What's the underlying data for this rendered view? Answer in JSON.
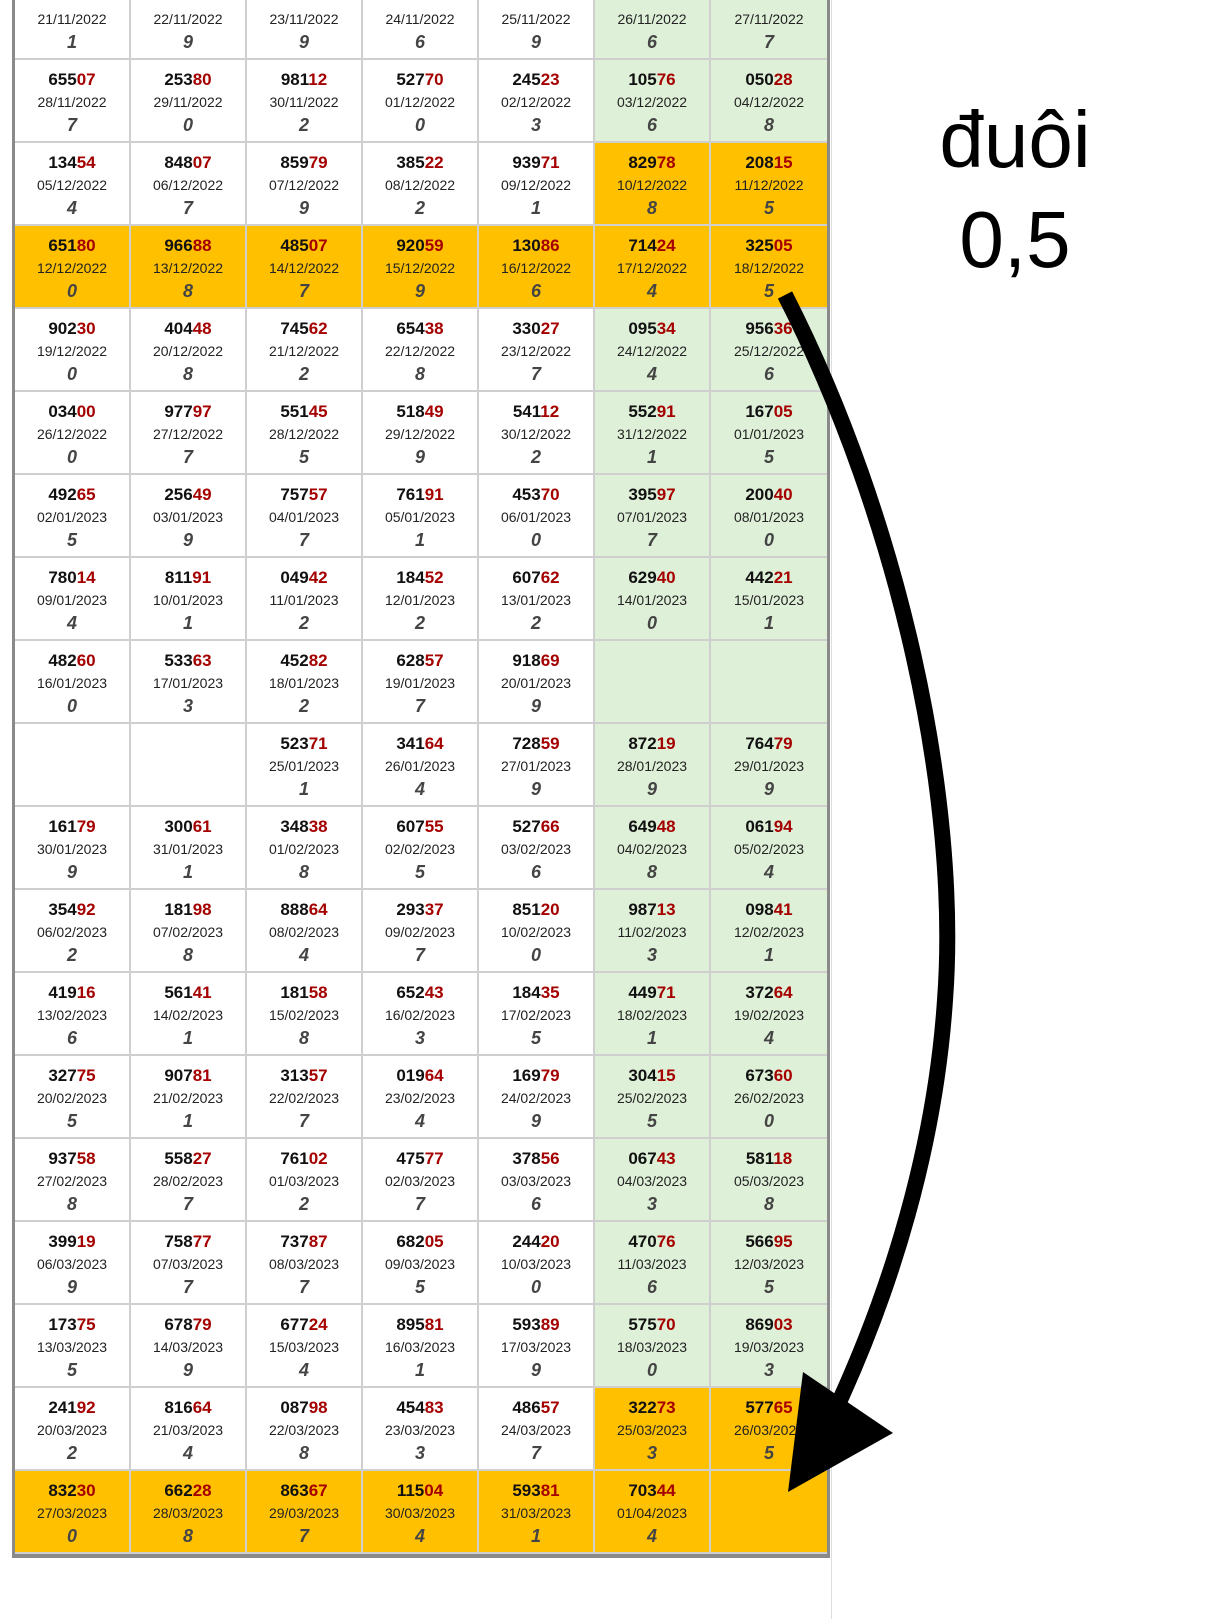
{
  "annotation": {
    "line1": "đuôi",
    "line2": "0,5"
  },
  "colors": {
    "weekend": "#dff0d8",
    "highlight": "#ffc000",
    "tail": "#a50000"
  },
  "rows": [
    {
      "hl": "none",
      "cells": [
        [
          "",
          "21/11/2022",
          "1"
        ],
        [
          "",
          "22/11/2022",
          "9"
        ],
        [
          "",
          "23/11/2022",
          "9"
        ],
        [
          "",
          "24/11/2022",
          "6"
        ],
        [
          "",
          "25/11/2022",
          "9"
        ],
        [
          "",
          "26/11/2022",
          "6"
        ],
        [
          "",
          "27/11/2022",
          "7"
        ]
      ]
    },
    {
      "hl": "none",
      "cells": [
        [
          "65507",
          "28/11/2022",
          "7"
        ],
        [
          "25380",
          "29/11/2022",
          "0"
        ],
        [
          "98112",
          "30/11/2022",
          "2"
        ],
        [
          "52770",
          "01/12/2022",
          "0"
        ],
        [
          "24523",
          "02/12/2022",
          "3"
        ],
        [
          "10576",
          "03/12/2022",
          "6"
        ],
        [
          "05028",
          "04/12/2022",
          "8"
        ]
      ]
    },
    {
      "hl": "weekend",
      "cells": [
        [
          "13454",
          "05/12/2022",
          "4"
        ],
        [
          "84807",
          "06/12/2022",
          "7"
        ],
        [
          "85979",
          "07/12/2022",
          "9"
        ],
        [
          "38522",
          "08/12/2022",
          "2"
        ],
        [
          "93971",
          "09/12/2022",
          "1"
        ],
        [
          "82978",
          "10/12/2022",
          "8"
        ],
        [
          "20815",
          "11/12/2022",
          "5"
        ]
      ]
    },
    {
      "hl": "all",
      "cells": [
        [
          "65180",
          "12/12/2022",
          "0"
        ],
        [
          "96688",
          "13/12/2022",
          "8"
        ],
        [
          "48507",
          "14/12/2022",
          "7"
        ],
        [
          "92059",
          "15/12/2022",
          "9"
        ],
        [
          "13086",
          "16/12/2022",
          "6"
        ],
        [
          "71424",
          "17/12/2022",
          "4"
        ],
        [
          "32505",
          "18/12/2022",
          "5"
        ]
      ]
    },
    {
      "hl": "none",
      "cells": [
        [
          "90230",
          "19/12/2022",
          "0"
        ],
        [
          "40448",
          "20/12/2022",
          "8"
        ],
        [
          "74562",
          "21/12/2022",
          "2"
        ],
        [
          "65438",
          "22/12/2022",
          "8"
        ],
        [
          "33027",
          "23/12/2022",
          "7"
        ],
        [
          "09534",
          "24/12/2022",
          "4"
        ],
        [
          "95636",
          "25/12/2022",
          "6"
        ]
      ]
    },
    {
      "hl": "none",
      "cells": [
        [
          "03400",
          "26/12/2022",
          "0"
        ],
        [
          "97797",
          "27/12/2022",
          "7"
        ],
        [
          "55145",
          "28/12/2022",
          "5"
        ],
        [
          "51849",
          "29/12/2022",
          "9"
        ],
        [
          "54112",
          "30/12/2022",
          "2"
        ],
        [
          "55291",
          "31/12/2022",
          "1"
        ],
        [
          "16705",
          "01/01/2023",
          "5"
        ]
      ]
    },
    {
      "hl": "none",
      "cells": [
        [
          "49265",
          "02/01/2023",
          "5"
        ],
        [
          "25649",
          "03/01/2023",
          "9"
        ],
        [
          "75757",
          "04/01/2023",
          "7"
        ],
        [
          "76191",
          "05/01/2023",
          "1"
        ],
        [
          "45370",
          "06/01/2023",
          "0"
        ],
        [
          "39597",
          "07/01/2023",
          "7"
        ],
        [
          "20040",
          "08/01/2023",
          "0"
        ]
      ]
    },
    {
      "hl": "none",
      "cells": [
        [
          "78014",
          "09/01/2023",
          "4"
        ],
        [
          "81191",
          "10/01/2023",
          "1"
        ],
        [
          "04942",
          "11/01/2023",
          "2"
        ],
        [
          "18452",
          "12/01/2023",
          "2"
        ],
        [
          "60762",
          "13/01/2023",
          "2"
        ],
        [
          "62940",
          "14/01/2023",
          "0"
        ],
        [
          "44221",
          "15/01/2023",
          "1"
        ]
      ]
    },
    {
      "hl": "none",
      "cells": [
        [
          "48260",
          "16/01/2023",
          "0"
        ],
        [
          "53363",
          "17/01/2023",
          "3"
        ],
        [
          "45282",
          "18/01/2023",
          "2"
        ],
        [
          "62857",
          "19/01/2023",
          "7"
        ],
        [
          "91869",
          "20/01/2023",
          "9"
        ],
        null,
        null
      ]
    },
    {
      "hl": "none",
      "cells": [
        null,
        null,
        [
          "52371",
          "25/01/2023",
          "1"
        ],
        [
          "34164",
          "26/01/2023",
          "4"
        ],
        [
          "72859",
          "27/01/2023",
          "9"
        ],
        [
          "87219",
          "28/01/2023",
          "9"
        ],
        [
          "76479",
          "29/01/2023",
          "9"
        ]
      ]
    },
    {
      "hl": "none",
      "cells": [
        [
          "16179",
          "30/01/2023",
          "9"
        ],
        [
          "30061",
          "31/01/2023",
          "1"
        ],
        [
          "34838",
          "01/02/2023",
          "8"
        ],
        [
          "60755",
          "02/02/2023",
          "5"
        ],
        [
          "52766",
          "03/02/2023",
          "6"
        ],
        [
          "64948",
          "04/02/2023",
          "8"
        ],
        [
          "06194",
          "05/02/2023",
          "4"
        ]
      ]
    },
    {
      "hl": "none",
      "cells": [
        [
          "35492",
          "06/02/2023",
          "2"
        ],
        [
          "18198",
          "07/02/2023",
          "8"
        ],
        [
          "88864",
          "08/02/2023",
          "4"
        ],
        [
          "29337",
          "09/02/2023",
          "7"
        ],
        [
          "85120",
          "10/02/2023",
          "0"
        ],
        [
          "98713",
          "11/02/2023",
          "3"
        ],
        [
          "09841",
          "12/02/2023",
          "1"
        ]
      ]
    },
    {
      "hl": "none",
      "cells": [
        [
          "41916",
          "13/02/2023",
          "6"
        ],
        [
          "56141",
          "14/02/2023",
          "1"
        ],
        [
          "18158",
          "15/02/2023",
          "8"
        ],
        [
          "65243",
          "16/02/2023",
          "3"
        ],
        [
          "18435",
          "17/02/2023",
          "5"
        ],
        [
          "44971",
          "18/02/2023",
          "1"
        ],
        [
          "37264",
          "19/02/2023",
          "4"
        ]
      ]
    },
    {
      "hl": "none",
      "cells": [
        [
          "32775",
          "20/02/2023",
          "5"
        ],
        [
          "90781",
          "21/02/2023",
          "1"
        ],
        [
          "31357",
          "22/02/2023",
          "7"
        ],
        [
          "01964",
          "23/02/2023",
          "4"
        ],
        [
          "16979",
          "24/02/2023",
          "9"
        ],
        [
          "30415",
          "25/02/2023",
          "5"
        ],
        [
          "67360",
          "26/02/2023",
          "0"
        ]
      ]
    },
    {
      "hl": "none",
      "cells": [
        [
          "93758",
          "27/02/2023",
          "8"
        ],
        [
          "55827",
          "28/02/2023",
          "7"
        ],
        [
          "76102",
          "01/03/2023",
          "2"
        ],
        [
          "47577",
          "02/03/2023",
          "7"
        ],
        [
          "37856",
          "03/03/2023",
          "6"
        ],
        [
          "06743",
          "04/03/2023",
          "3"
        ],
        [
          "58118",
          "05/03/2023",
          "8"
        ]
      ]
    },
    {
      "hl": "none",
      "cells": [
        [
          "39919",
          "06/03/2023",
          "9"
        ],
        [
          "75877",
          "07/03/2023",
          "7"
        ],
        [
          "73787",
          "08/03/2023",
          "7"
        ],
        [
          "68205",
          "09/03/2023",
          "5"
        ],
        [
          "24420",
          "10/03/2023",
          "0"
        ],
        [
          "47076",
          "11/03/2023",
          "6"
        ],
        [
          "56695",
          "12/03/2023",
          "5"
        ]
      ]
    },
    {
      "hl": "none",
      "cells": [
        [
          "17375",
          "13/03/2023",
          "5"
        ],
        [
          "67879",
          "14/03/2023",
          "9"
        ],
        [
          "67724",
          "15/03/2023",
          "4"
        ],
        [
          "89581",
          "16/03/2023",
          "1"
        ],
        [
          "59389",
          "17/03/2023",
          "9"
        ],
        [
          "57570",
          "18/03/2023",
          "0"
        ],
        [
          "86903",
          "19/03/2023",
          "3"
        ]
      ]
    },
    {
      "hl": "weekend",
      "cells": [
        [
          "24192",
          "20/03/2023",
          "2"
        ],
        [
          "81664",
          "21/03/2023",
          "4"
        ],
        [
          "08798",
          "22/03/2023",
          "8"
        ],
        [
          "45483",
          "23/03/2023",
          "3"
        ],
        [
          "48657",
          "24/03/2023",
          "7"
        ],
        [
          "32273",
          "25/03/2023",
          "3"
        ],
        [
          "57765",
          "26/03/2023",
          "5"
        ]
      ]
    },
    {
      "hl": "all",
      "cells": [
        [
          "83230",
          "27/03/2023",
          "0"
        ],
        [
          "66228",
          "28/03/2023",
          "8"
        ],
        [
          "86367",
          "29/03/2023",
          "7"
        ],
        [
          "11504",
          "30/03/2023",
          "4"
        ],
        [
          "59381",
          "31/03/2023",
          "1"
        ],
        [
          "70344",
          "01/04/2023",
          "4"
        ],
        null
      ]
    }
  ]
}
